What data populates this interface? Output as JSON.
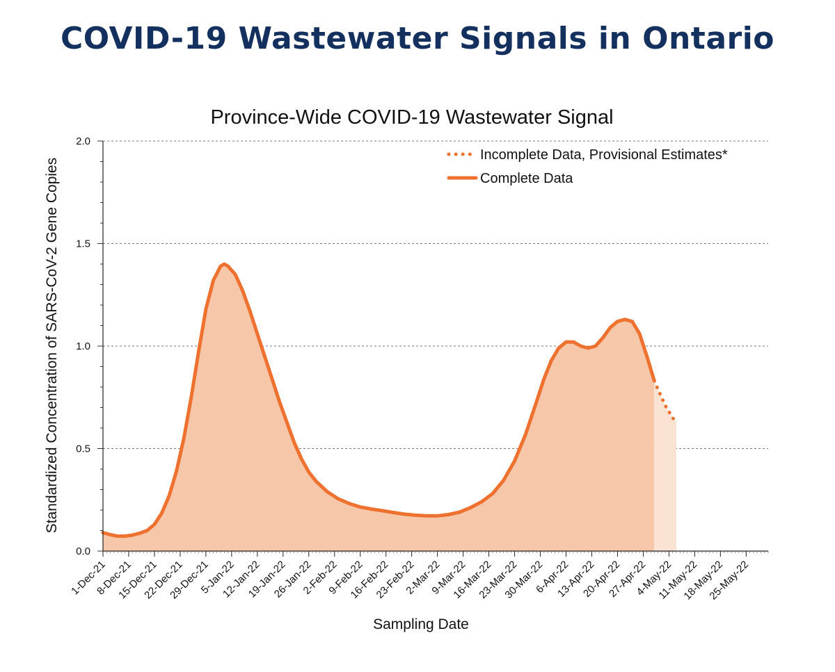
{
  "page_title": "COVID-19 Wastewater Signals in Ontario",
  "chart_data": {
    "type": "area",
    "title": "Province-Wide COVID-19 Wastewater Signal",
    "xlabel": "Sampling Date",
    "ylabel": "Standardized Concentration of SARS-CoV-2 Gene Copies",
    "x_ticks": [
      "1-Dec-21",
      "8-Dec-21",
      "15-Dec-21",
      "22-Dec-21",
      "29-Dec-21",
      "5-Jan-22",
      "12-Jan-22",
      "19-Jan-22",
      "26-Jan-22",
      "2-Feb-22",
      "9-Feb-22",
      "16-Feb-22",
      "23-Feb-22",
      "2-Mar-22",
      "9-Mar-22",
      "16-Mar-22",
      "23-Mar-22",
      "30-Mar-22",
      "6-Apr-22",
      "13-Apr-22",
      "20-Apr-22",
      "27-Apr-22",
      "4-May-22",
      "11-May-22",
      "18-May-22",
      "25-May-22"
    ],
    "x_range": [
      "2021-12-01",
      "2022-05-31"
    ],
    "y_ticks": [
      "0.0",
      "0.5",
      "1.0",
      "1.5",
      "2.0"
    ],
    "ylim": [
      0,
      2.0
    ],
    "grid": "horizontal dashed",
    "legend_position": "top-right",
    "colors": {
      "line": "#ee7130",
      "fill": "#f6c8a9",
      "fill_provisional": "#fbe3d3"
    },
    "series": [
      {
        "name": "Complete Data",
        "style": "solid",
        "x": [
          "2021-12-01",
          "2021-12-03",
          "2021-12-05",
          "2021-12-07",
          "2021-12-09",
          "2021-12-11",
          "2021-12-13",
          "2021-12-15",
          "2021-12-17",
          "2021-12-19",
          "2021-12-21",
          "2021-12-23",
          "2021-12-25",
          "2021-12-27",
          "2021-12-29",
          "2021-12-31",
          "2022-01-02",
          "2022-01-03",
          "2022-01-04",
          "2022-01-06",
          "2022-01-08",
          "2022-01-10",
          "2022-01-12",
          "2022-01-14",
          "2022-01-16",
          "2022-01-18",
          "2022-01-20",
          "2022-01-22",
          "2022-01-24",
          "2022-01-26",
          "2022-01-28",
          "2022-01-31",
          "2022-02-03",
          "2022-02-06",
          "2022-02-09",
          "2022-02-12",
          "2022-02-15",
          "2022-02-18",
          "2022-02-21",
          "2022-02-24",
          "2022-02-27",
          "2022-03-02",
          "2022-03-05",
          "2022-03-08",
          "2022-03-11",
          "2022-03-14",
          "2022-03-17",
          "2022-03-20",
          "2022-03-23",
          "2022-03-26",
          "2022-03-29",
          "2022-03-31",
          "2022-04-02",
          "2022-04-04",
          "2022-04-06",
          "2022-04-08",
          "2022-04-10",
          "2022-04-12",
          "2022-04-14",
          "2022-04-16",
          "2022-04-18",
          "2022-04-20",
          "2022-04-22",
          "2022-04-24",
          "2022-04-26",
          "2022-04-28",
          "2022-04-30"
        ],
        "y": [
          0.09,
          0.08,
          0.073,
          0.073,
          0.078,
          0.087,
          0.1,
          0.13,
          0.185,
          0.27,
          0.39,
          0.55,
          0.75,
          0.97,
          1.18,
          1.32,
          1.39,
          1.4,
          1.39,
          1.35,
          1.27,
          1.17,
          1.06,
          0.95,
          0.84,
          0.73,
          0.63,
          0.53,
          0.45,
          0.385,
          0.34,
          0.29,
          0.255,
          0.232,
          0.215,
          0.205,
          0.197,
          0.188,
          0.18,
          0.175,
          0.172,
          0.172,
          0.178,
          0.19,
          0.212,
          0.24,
          0.28,
          0.345,
          0.44,
          0.57,
          0.73,
          0.84,
          0.93,
          0.99,
          1.02,
          1.02,
          1.0,
          0.99,
          1.0,
          1.04,
          1.09,
          1.12,
          1.13,
          1.12,
          1.06,
          0.95,
          0.83
        ]
      },
      {
        "name": "Incomplete Data, Provisional Estimates*",
        "style": "dotted",
        "x": [
          "2022-04-30",
          "2022-05-01",
          "2022-05-02",
          "2022-05-03",
          "2022-05-04",
          "2022-05-05",
          "2022-05-06"
        ],
        "y": [
          0.83,
          0.79,
          0.75,
          0.71,
          0.68,
          0.65,
          0.63
        ]
      }
    ]
  }
}
